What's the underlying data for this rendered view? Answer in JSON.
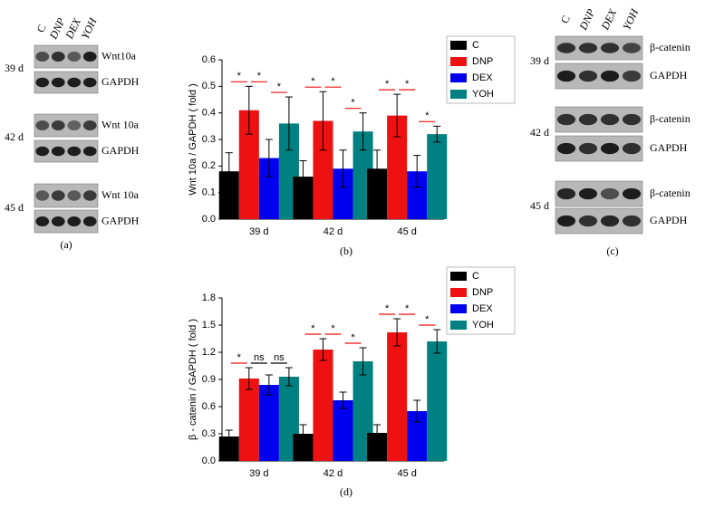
{
  "blots": [
    {
      "caption": "(a)",
      "lanes": [
        "C",
        "DNP",
        "DEX",
        "YOH"
      ],
      "days": [
        "39 d",
        "42 d",
        "45 d"
      ],
      "proteins": [
        "Wnt10a",
        "GAPDH",
        "Wnt 10a",
        "GAPDH",
        "Wnt 10a",
        "GAPDH"
      ]
    },
    {
      "caption": "(c)",
      "lanes": [
        "C",
        "DNP",
        "DEX",
        "YOH"
      ],
      "days": [
        "39 d",
        "42 d",
        "45 d"
      ],
      "proteins": [
        "β-catenin",
        "GAPDH",
        "β-catenin",
        "GAPDH",
        "β-catenin",
        "GAPDH"
      ]
    }
  ],
  "chart_data": [
    {
      "type": "bar",
      "caption": "(b)",
      "y_label": "Wnt 10a / GAPDH ( fold )",
      "categories": [
        "39 d",
        "42 d",
        "45 d"
      ],
      "series": [
        {
          "name": "C",
          "color": "#000000",
          "values": [
            0.18,
            0.16,
            0.19
          ],
          "errors": [
            0.07,
            0.06,
            0.07
          ]
        },
        {
          "name": "DNP",
          "color": "#ee1111",
          "values": [
            0.41,
            0.37,
            0.39
          ],
          "errors": [
            0.09,
            0.11,
            0.08
          ]
        },
        {
          "name": "DEX",
          "color": "#0000ee",
          "values": [
            0.23,
            0.19,
            0.18
          ],
          "errors": [
            0.07,
            0.07,
            0.06
          ]
        },
        {
          "name": "YOH",
          "color": "#008080",
          "values": [
            0.36,
            0.33,
            0.32
          ],
          "errors": [
            0.1,
            0.07,
            0.03
          ]
        }
      ],
      "comparisons": [
        [
          {
            "label": "*",
            "color": "#ee1111"
          },
          {
            "label": "*",
            "color": "#ee1111"
          },
          {
            "label": "*",
            "color": "#ee1111"
          }
        ],
        [
          {
            "label": "*",
            "color": "#ee1111"
          },
          {
            "label": "*",
            "color": "#ee1111"
          },
          {
            "label": "*",
            "color": "#ee1111"
          }
        ],
        [
          {
            "label": "*",
            "color": "#ee1111"
          },
          {
            "label": "*",
            "color": "#ee1111"
          },
          {
            "label": "*",
            "color": "#ee1111"
          }
        ]
      ],
      "ylim": [
        0,
        0.6
      ],
      "yticks": [
        {
          "value": 0,
          "label": "0.0"
        },
        0.1,
        0.2,
        0.3,
        0.4,
        0.5,
        0.6
      ]
    },
    {
      "type": "bar",
      "caption": "(d)",
      "y_label": "β - catenin / GAPDH ( fold )",
      "categories": [
        "39 d",
        "42 d",
        "45 d"
      ],
      "series": [
        {
          "name": "C",
          "color": "#000000",
          "values": [
            0.27,
            0.3,
            0.31
          ],
          "errors": [
            0.07,
            0.1,
            0.09
          ]
        },
        {
          "name": "DNP",
          "color": "#ee1111",
          "values": [
            0.91,
            1.23,
            1.42
          ],
          "errors": [
            0.12,
            0.12,
            0.15
          ]
        },
        {
          "name": "DEX",
          "color": "#0000ee",
          "values": [
            0.84,
            0.67,
            0.55
          ],
          "errors": [
            0.11,
            0.09,
            0.12
          ]
        },
        {
          "name": "YOH",
          "color": "#008080",
          "values": [
            0.93,
            1.1,
            1.32
          ],
          "errors": [
            0.1,
            0.15,
            0.13
          ]
        }
      ],
      "comparisons": [
        [
          {
            "label": "*",
            "color": "#ee1111"
          },
          {
            "label": "ns",
            "color": "#000000"
          },
          {
            "label": "ns",
            "color": "#000000"
          }
        ],
        [
          {
            "label": "*",
            "color": "#ee1111"
          },
          {
            "label": "*",
            "color": "#ee1111"
          },
          {
            "label": "*",
            "color": "#ee1111"
          }
        ],
        [
          {
            "label": "*",
            "color": "#ee1111"
          },
          {
            "label": "*",
            "color": "#ee1111"
          },
          {
            "label": "*",
            "color": "#ee1111"
          }
        ]
      ],
      "ylim": [
        0,
        1.8
      ],
      "yticks": [
        {
          "value": 0,
          "label": "0.0"
        },
        0.3,
        0.6,
        0.9,
        1.2,
        1.5,
        1.8
      ]
    }
  ]
}
